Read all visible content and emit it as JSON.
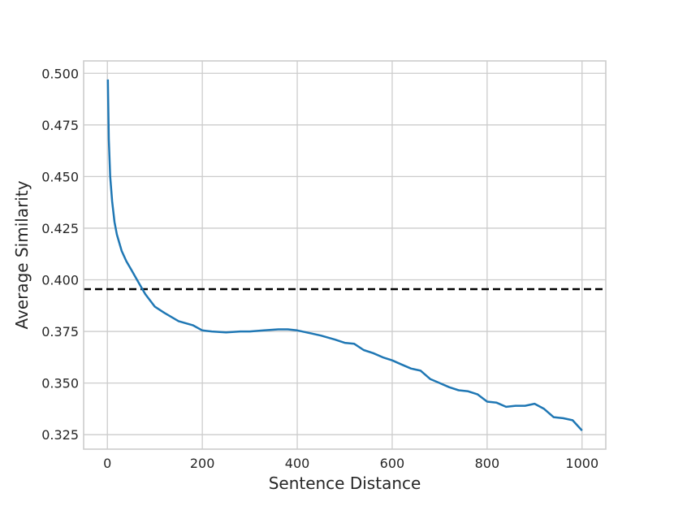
{
  "chart_data": {
    "type": "line",
    "title": "",
    "xlabel": "Sentence Distance",
    "ylabel": "Average Similarity",
    "xlim": [
      -50,
      1050
    ],
    "ylim": [
      0.318,
      0.506
    ],
    "xticks": [
      0,
      200,
      400,
      600,
      800,
      1000
    ],
    "xtick_labels": [
      "0",
      "200",
      "400",
      "600",
      "800",
      "1000"
    ],
    "yticks": [
      0.325,
      0.35,
      0.375,
      0.4,
      0.425,
      0.45,
      0.475,
      0.5
    ],
    "ytick_labels": [
      "0.325",
      "0.350",
      "0.375",
      "0.400",
      "0.425",
      "0.450",
      "0.475",
      "0.500"
    ],
    "grid": true,
    "legend": "none",
    "reference_line": {
      "type": "horizontal",
      "y": 0.3955,
      "style": "dashed",
      "color": "#000000"
    },
    "series": [
      {
        "color": "#1f77b4",
        "x": [
          1,
          3,
          6,
          10,
          15,
          20,
          30,
          40,
          50,
          60,
          70,
          80,
          100,
          120,
          150,
          180,
          200,
          220,
          250,
          280,
          300,
          330,
          360,
          380,
          400,
          420,
          450,
          480,
          500,
          520,
          540,
          560,
          580,
          600,
          620,
          640,
          660,
          680,
          700,
          720,
          740,
          760,
          780,
          800,
          820,
          840,
          860,
          880,
          900,
          920,
          940,
          960,
          980,
          1000
        ],
        "y": [
          0.497,
          0.468,
          0.45,
          0.438,
          0.428,
          0.422,
          0.414,
          0.409,
          0.405,
          0.401,
          0.397,
          0.393,
          0.387,
          0.384,
          0.38,
          0.378,
          0.3755,
          0.375,
          0.3745,
          0.375,
          0.375,
          0.3755,
          0.376,
          0.376,
          0.3755,
          0.3745,
          0.373,
          0.371,
          0.3695,
          0.369,
          0.366,
          0.3645,
          0.3625,
          0.361,
          0.359,
          0.357,
          0.356,
          0.352,
          0.35,
          0.348,
          0.3465,
          0.346,
          0.3445,
          0.341,
          0.3405,
          0.3385,
          0.339,
          0.339,
          0.34,
          0.3375,
          0.3335,
          0.333,
          0.332,
          0.327
        ]
      }
    ]
  }
}
